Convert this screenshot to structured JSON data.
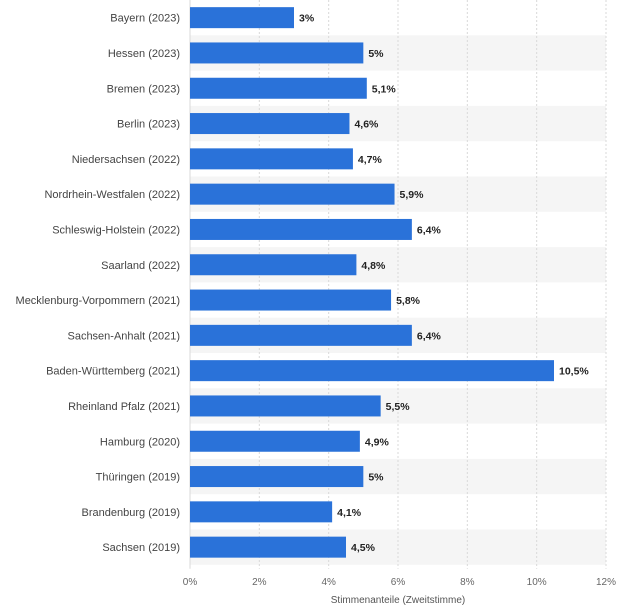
{
  "colors": {
    "bar": "#2a72d9",
    "stripe": "#f5f5f5",
    "grid": "#d9d9d9"
  },
  "chart_data": {
    "type": "bar",
    "orientation": "horizontal",
    "categories": [
      "Bayern (2023)",
      "Hessen (2023)",
      "Bremen (2023)",
      "Berlin (2023)",
      "Niedersachsen (2022)",
      "Nordrhein-Westfalen (2022)",
      "Schleswig-Holstein (2022)",
      "Saarland (2022)",
      "Mecklenburg-Vorpommern (2021)",
      "Sachsen-Anhalt (2021)",
      "Baden-Württemberg (2021)",
      "Rheinland Pfalz (2021)",
      "Hamburg (2020)",
      "Thüringen (2019)",
      "Brandenburg (2019)",
      "Sachsen (2019)"
    ],
    "values": [
      3,
      5,
      5.1,
      4.6,
      4.7,
      5.9,
      6.4,
      4.8,
      5.8,
      6.4,
      10.5,
      5.5,
      4.9,
      5,
      4.1,
      4.5
    ],
    "value_labels": [
      "3%",
      "5%",
      "5,1%",
      "4,6%",
      "4,7%",
      "5,9%",
      "6,4%",
      "4,8%",
      "5,8%",
      "6,4%",
      "10,5%",
      "5,5%",
      "4,9%",
      "5%",
      "4,1%",
      "4,5%"
    ],
    "xlabel": "Stimmenanteile (Zweitstimme)",
    "xlim": [
      0,
      12
    ],
    "xticks": [
      0,
      2,
      4,
      6,
      8,
      10,
      12
    ],
    "xtick_labels": [
      "0%",
      "2%",
      "4%",
      "6%",
      "8%",
      "10%",
      "12%"
    ],
    "grid": true
  }
}
